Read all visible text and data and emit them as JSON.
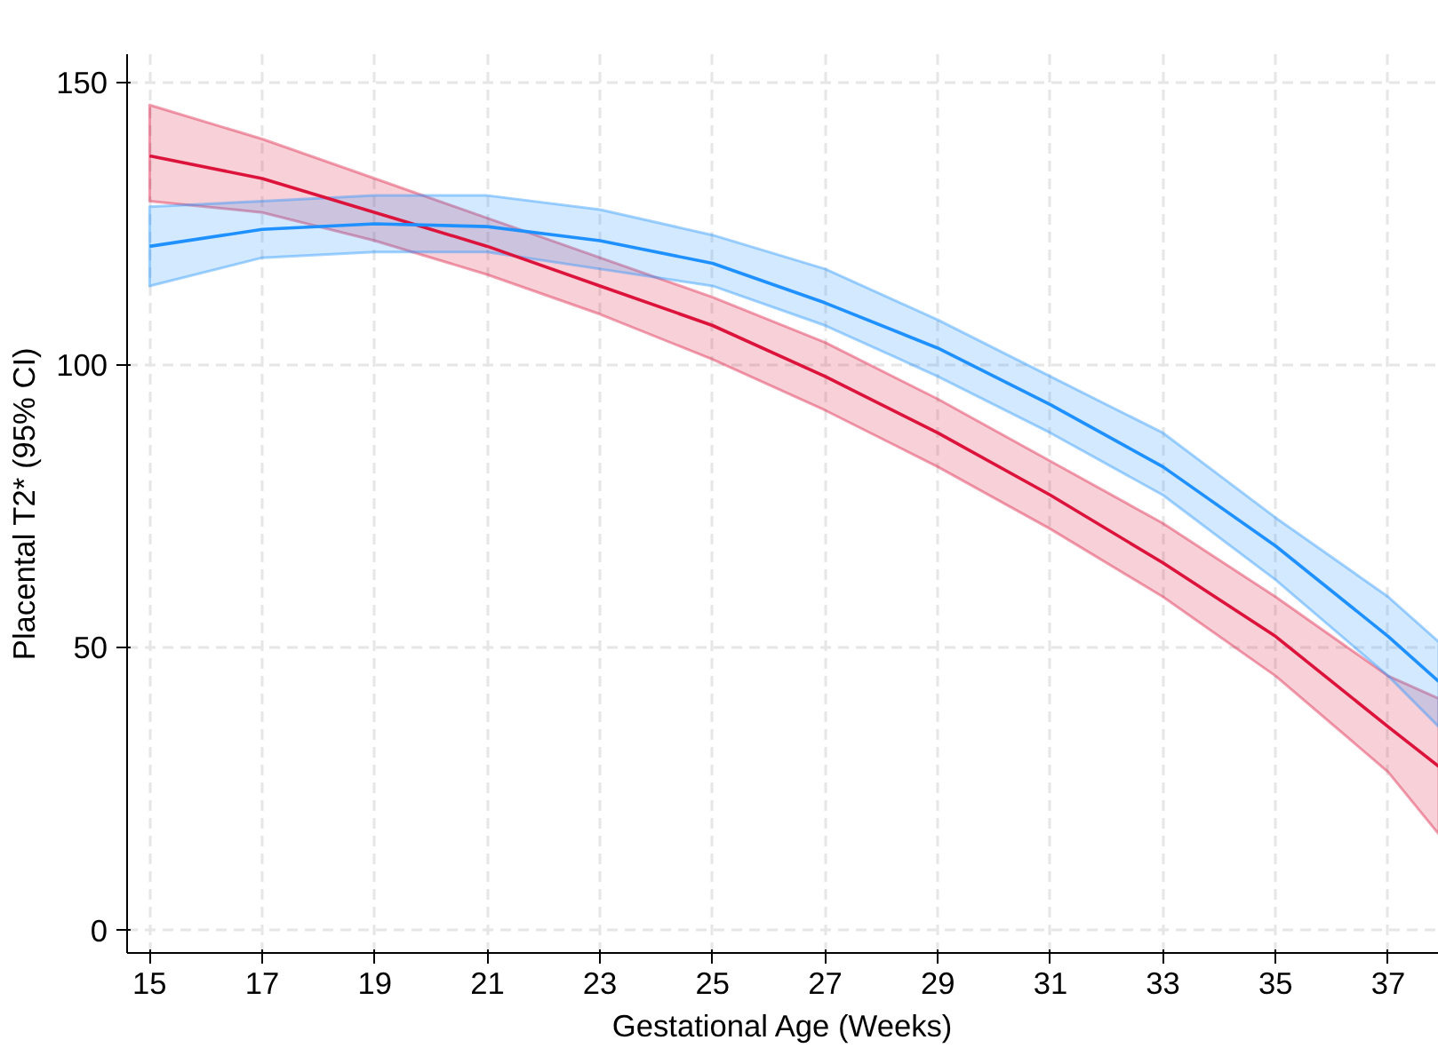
{
  "chart_data": {
    "type": "line",
    "xlabel": "Gestational Age (Weeks)",
    "ylabel": "Placental T2* (95% CI)",
    "x": [
      15,
      17,
      19,
      21,
      23,
      25,
      27,
      29,
      31,
      33,
      35,
      37,
      37.9
    ],
    "xlim": [
      14.6,
      37.9
    ],
    "xticks": [
      15,
      17,
      19,
      21,
      23,
      25,
      27,
      29,
      31,
      33,
      35,
      37
    ],
    "ylim": [
      -4,
      155
    ],
    "yticks": [
      0,
      50,
      100,
      150
    ],
    "grid": true,
    "line_style": "solid",
    "series": [
      {
        "color": "#dc143c",
        "values": [
          137,
          133,
          127,
          121,
          114,
          107,
          98,
          88,
          77,
          65,
          52,
          36,
          29
        ],
        "lower": [
          129,
          127,
          122,
          116,
          109,
          101,
          92,
          82,
          71,
          59,
          45,
          28,
          17
        ],
        "upper": [
          146,
          140,
          133,
          126,
          119,
          112,
          104,
          94,
          83,
          72,
          59,
          45,
          41
        ]
      },
      {
        "color": "#1e90ff",
        "values": [
          121,
          124,
          125,
          124.5,
          122,
          118,
          111,
          103,
          93,
          82,
          68,
          52,
          44
        ],
        "lower": [
          114,
          119,
          120,
          120,
          117,
          114,
          107,
          98,
          88,
          77,
          62,
          45,
          36
        ],
        "upper": [
          128,
          129,
          130,
          130,
          127.5,
          123,
          117,
          108,
          98,
          88,
          73,
          59,
          51
        ]
      }
    ]
  }
}
